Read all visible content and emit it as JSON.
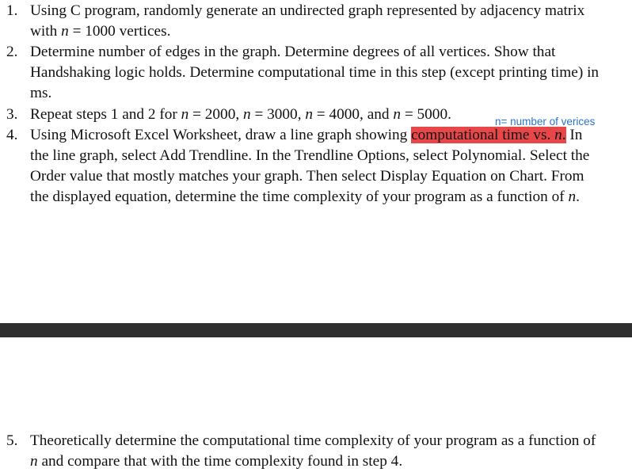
{
  "items": [
    {
      "number": "1.",
      "lines": [
        [
          {
            "t": "Using C program, randomly generate an undirected graph represented by adjacency matrix"
          }
        ],
        [
          {
            "t": "with "
          },
          {
            "t": "n",
            "i": true
          },
          {
            "t": " = 1000 vertices."
          }
        ]
      ]
    },
    {
      "number": "2.",
      "lines": [
        [
          {
            "t": "Determine number of edges in the graph. Determine degrees of all vertices. Show that"
          }
        ],
        [
          {
            "t": "Handshaking logic holds. Determine computational time in this step (except printing time) in"
          }
        ],
        [
          {
            "t": "ms."
          }
        ]
      ]
    },
    {
      "number": "3.",
      "lines": [
        [
          {
            "t": "Repeat steps 1 and 2 for "
          },
          {
            "t": "n",
            "i": true
          },
          {
            "t": " = 2000, "
          },
          {
            "t": "n",
            "i": true
          },
          {
            "t": " = 3000, "
          },
          {
            "t": "n",
            "i": true
          },
          {
            "t": " = 4000, and "
          },
          {
            "t": "n",
            "i": true
          },
          {
            "t": " = 5000."
          }
        ]
      ]
    },
    {
      "number": "4.",
      "lines": [
        [
          {
            "t": "Using Microsoft Excel Worksheet, draw a line graph showing "
          },
          {
            "t": "computational time vs. ",
            "h": true
          },
          {
            "t": "n",
            "i": true,
            "h": true
          },
          {
            "t": ".",
            "h": true
          },
          {
            "t": " In"
          }
        ],
        [
          {
            "t": "the line graph, select Add Trendline. In the Trendline Options, select Polynomial. Select the"
          }
        ],
        [
          {
            "t": "Order value that mostly matches your graph. Then select Display Equation on Chart. From"
          }
        ],
        [
          {
            "t": "the displayed equation, determine the time complexity of your program as a function of "
          },
          {
            "t": "n",
            "i": true
          },
          {
            "t": "."
          }
        ]
      ]
    },
    {
      "number": "5.",
      "lines": [
        [
          {
            "t": "Theoretically determine the computational time complexity of your program as a function of"
          }
        ],
        [
          {
            "t": "n",
            "i": true
          },
          {
            "t": " and compare that with the time complexity found in step 4."
          }
        ]
      ]
    }
  ],
  "annotation": "n= number of verices",
  "colors": {
    "highlight": "#e8474a",
    "annotation": "#2b74c7",
    "band": "#2f2f2f"
  }
}
